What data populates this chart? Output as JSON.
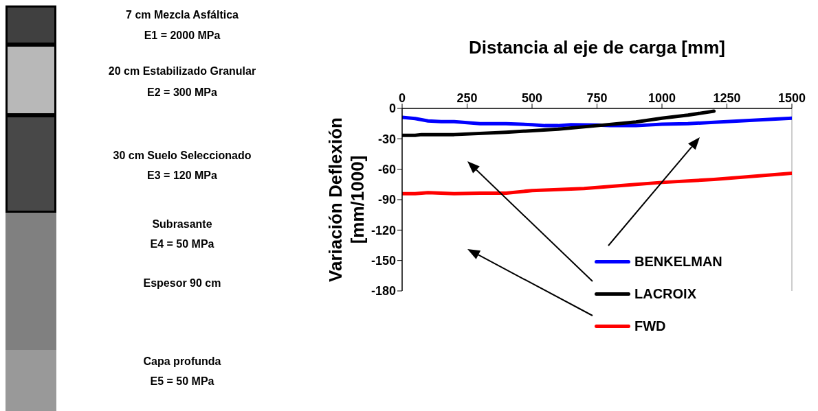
{
  "chart_data": {
    "type": "line",
    "xlabel": "Distancia al eje de carga [mm]",
    "ylabel": "Variación Deflexión\n[mm/1000]",
    "xlim": [
      0,
      1500
    ],
    "xticks": [
      0,
      250,
      500,
      750,
      1000,
      1250,
      1500
    ],
    "ylim": [
      -180,
      0
    ],
    "yticks": [
      0,
      -30,
      -60,
      -90,
      -120,
      -150,
      -180
    ],
    "grid": false,
    "legend": "right",
    "marker": "none",
    "line_style": "solid",
    "series": [
      {
        "name": "BENKELMAN",
        "color": "#0000ff",
        "x": [
          0,
          50,
          100,
          150,
          200,
          300,
          400,
          500,
          550,
          600,
          650,
          750,
          800,
          900,
          1000,
          1100,
          1200,
          1500
        ],
        "values": [
          -8.8,
          -10,
          -12.4,
          -13,
          -13,
          -15,
          -15,
          -16,
          -17,
          -17,
          -16,
          -16.4,
          -17,
          -17,
          -15.5,
          -15,
          -13.7,
          -9.7
        ]
      },
      {
        "name": "LACROIX",
        "color": "#000000",
        "x": [
          0,
          50,
          75,
          200,
          400,
          600,
          750,
          900,
          1000,
          1100,
          1200
        ],
        "values": [
          -26.5,
          -26.5,
          -25.8,
          -25.8,
          -23.5,
          -20.4,
          -17,
          -13.3,
          -9.7,
          -6.6,
          -2.7
        ]
      },
      {
        "name": "FWD",
        "color": "#ff0000",
        "x": [
          0,
          50,
          100,
          200,
          300,
          400,
          500,
          700,
          900,
          1000,
          1200,
          1500
        ],
        "values": [
          -84,
          -84,
          -83,
          -84,
          -83.5,
          -83.5,
          -81,
          -79,
          -75,
          -73,
          -70,
          -64
        ]
      }
    ],
    "annotations": [
      "7 cm Mezcla Asfáltica",
      "E1 = 2000 MPa",
      "20 cm Estabilizado Granular",
      "E2 = 300 MPa",
      "30 cm Suelo Seleccionado",
      "E3 = 120 MPa",
      "Subrasante",
      "E4 = 50 MPa",
      "Espesor 90 cm",
      "Capa profunda",
      "E5 = 50 MPa"
    ]
  }
}
